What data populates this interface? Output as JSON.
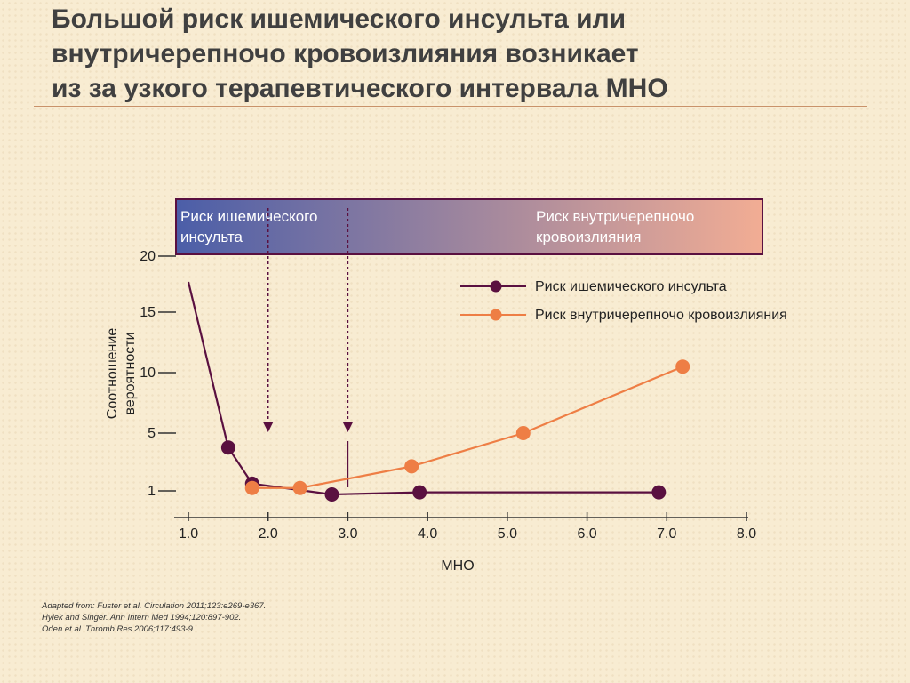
{
  "title_lines": [
    "Большой риск ишемического инсульта или",
    "внутричерепночо кровоизлияния возникает",
    "из за узкого терапевтического интервала МНО"
  ],
  "banner": {
    "left_line1": "Риск ишемического",
    "left_line2": "инсульта",
    "right_line1": "Риск внутричерепночо",
    "right_line2": "кровоизлияния",
    "color_left": "#4b5ea8",
    "color_right": "#f2ad94"
  },
  "sources": [
    "Adapted from: Fuster et al. Circulation 2011;123:e269-e367.",
    "Hylek and Singer. Ann Intern Med 1994;120:897-902.",
    "Oden et al. Thromb Res 2006;117:493-9."
  ],
  "chart_data": {
    "type": "line",
    "xlabel": "МНО",
    "ylabel_line1": "Соотношение",
    "ylabel_line2": "вероятности",
    "x_ticks": [
      "1.0",
      "2.0",
      "3.0",
      "4.0",
      "5.0",
      "6.0",
      "7.0",
      "8.0"
    ],
    "y_ticks": [
      "1",
      "5",
      "10",
      "15",
      "20"
    ],
    "xlim": [
      1.0,
      8.0
    ],
    "legend_position": "top-right",
    "series": [
      {
        "name": "Риск ишемического инсульта",
        "color": "#5a1040",
        "x": [
          1.5,
          1.8,
          2.8,
          3.9,
          6.9
        ],
        "y": [
          4.0,
          1.5,
          0.5,
          0.8,
          0.8
        ],
        "lead_in": {
          "x": 1.0,
          "y": 17.7
        }
      },
      {
        "name": "Риск внутричерепночо кровоизлияния",
        "color": "#ee7e45",
        "x": [
          1.8,
          2.4,
          3.8,
          5.2,
          7.2
        ],
        "y": [
          1.2,
          1.2,
          2.7,
          5.0,
          10.5
        ]
      }
    ],
    "dashed_markers_x": [
      2.0,
      3.0
    ]
  }
}
